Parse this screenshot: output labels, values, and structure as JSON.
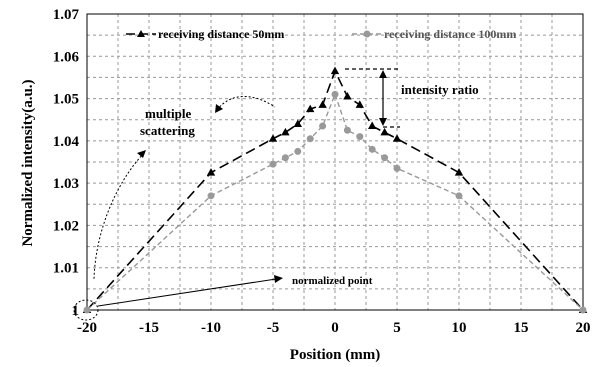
{
  "chart_data": {
    "type": "line",
    "title": "",
    "xlabel": "Position (mm)",
    "ylabel": "Normalized intensity(a.u.)",
    "xlim": [
      -20,
      20
    ],
    "ylim": [
      1.0,
      1.07
    ],
    "x_ticks": [
      "-20",
      "-15",
      "-10",
      "-5",
      "0",
      "5",
      "10",
      "15",
      "20"
    ],
    "y_ticks": [
      "1",
      "1.01",
      "1.02",
      "1.03",
      "1.04",
      "1.05",
      "1.06",
      "1.07"
    ],
    "grid": true,
    "legend_position": "top",
    "series": [
      {
        "name": "receiving distance 50mm",
        "color": "#000000",
        "marker": "triangle",
        "line": "long-dash",
        "x": [
          -20,
          -10,
          -5,
          -4,
          -3,
          -2,
          -1,
          0,
          1,
          2,
          3,
          4,
          5,
          10,
          20
        ],
        "y": [
          1.0,
          1.0325,
          1.0405,
          1.042,
          1.044,
          1.0475,
          1.0485,
          1.0565,
          1.0505,
          1.0485,
          1.0435,
          1.042,
          1.0405,
          1.0325,
          1.0
        ]
      },
      {
        "name": "receiving distance 100mm",
        "color": "#999999",
        "marker": "circle",
        "line": "dash",
        "x": [
          -20,
          -10,
          -5,
          -4,
          -3,
          -2,
          -1,
          0,
          1,
          2,
          3,
          4,
          5,
          10,
          20
        ],
        "y": [
          1.0,
          1.027,
          1.0345,
          1.036,
          1.0375,
          1.0405,
          1.0435,
          1.051,
          1.0425,
          1.041,
          1.038,
          1.036,
          1.0335,
          1.027,
          1.0
        ]
      }
    ],
    "annotations": {
      "intensity_ratio": "intensity ratio",
      "multiple_scattering_line1": "multiple",
      "multiple_scattering_line2": "scattering",
      "normalized_point": "normalized point"
    }
  }
}
